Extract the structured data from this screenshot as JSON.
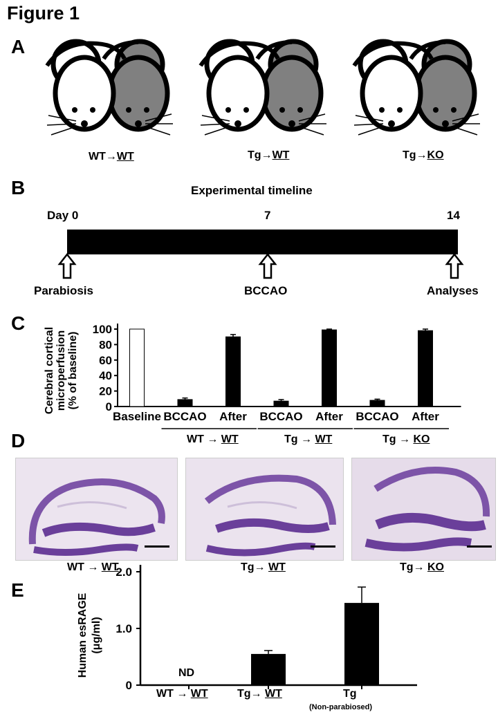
{
  "figure_title": "Figure 1",
  "panels": {
    "A": {
      "letter": "A",
      "pairs": [
        {
          "donor": "WT",
          "arrow": "→",
          "recipient": "WT"
        },
        {
          "donor": "Tg",
          "arrow": "→",
          "recipient": "WT"
        },
        {
          "donor": "Tg",
          "arrow": "→",
          "recipient": "KO"
        }
      ]
    },
    "B": {
      "letter": "B",
      "title": "Experimental timeline",
      "day_label": "Day 0",
      "mid_day": "7",
      "end_day": "14",
      "events": [
        "Parabiosis",
        "BCCAO",
        "Analyses"
      ]
    },
    "C": {
      "letter": "C",
      "group_labels": [
        {
          "donor": "WT",
          "arrow": "→",
          "recipient": "WT"
        },
        {
          "donor": "Tg",
          "arrow": "→",
          "recipient": "WT"
        },
        {
          "donor": "Tg",
          "arrow": "→",
          "recipient": "KO"
        }
      ]
    },
    "D": {
      "letter": "D",
      "captions": [
        {
          "donor": "WT",
          "arrow": "→",
          "recipient": "WT"
        },
        {
          "donor": "Tg",
          "arrow": "→",
          "recipient": "WT"
        },
        {
          "donor": "Tg",
          "arrow": "→",
          "recipient": "KO"
        }
      ]
    },
    "E": {
      "letter": "E",
      "nd_label": "ND",
      "tick_labels": [
        {
          "donor": "WT",
          "arrow": "→",
          "recipient": "WT"
        },
        {
          "donor": "Tg",
          "arrow": "→",
          "recipient": "WT"
        },
        {
          "donor": "Tg",
          "sub": "(Non-parabiosed)"
        }
      ]
    }
  },
  "colors": {
    "mouse_white": "#ffffff",
    "mouse_gray": "#808080",
    "bar_filled": "#000000",
    "bar_open": "#ffffff",
    "stain_light": "#d9cde2",
    "stain_dark": "#6a3f9a"
  },
  "chart_data": [
    {
      "type": "bar",
      "panel": "C",
      "categories": [
        "Baseline",
        "BCCAO",
        "After",
        "BCCAO",
        "After",
        "BCCAO",
        "After"
      ],
      "values": [
        100,
        9,
        90,
        7,
        99,
        8,
        98
      ],
      "errors": [
        0,
        2,
        3,
        2,
        1,
        1.5,
        2
      ],
      "fills": [
        "open",
        "filled",
        "filled",
        "filled",
        "filled",
        "filled",
        "filled"
      ],
      "ylabel": "Cerebral cortical microperfusion (% of baseline)",
      "ylabel_lines": [
        "Cerebral cortical",
        "microperfusion",
        "(% of baseline)"
      ],
      "yticks": [
        "0",
        "20",
        "40",
        "60",
        "80",
        "100"
      ],
      "ylim": [
        0,
        110
      ]
    },
    {
      "type": "bar",
      "panel": "E",
      "categories": [
        "WT → WT",
        "Tg → WT",
        "Tg (Non-parabiosed)"
      ],
      "values": [
        0,
        0.55,
        1.45
      ],
      "errors": [
        0,
        0.06,
        0.28
      ],
      "ylabel": "Human esRAGE (μg/ml)",
      "ylabel_lines": [
        "Human esRAGE",
        "(μg/ml)"
      ],
      "yticks": [
        "0",
        "1.0",
        "2.0"
      ],
      "ylim": [
        0,
        2.1
      ]
    }
  ]
}
